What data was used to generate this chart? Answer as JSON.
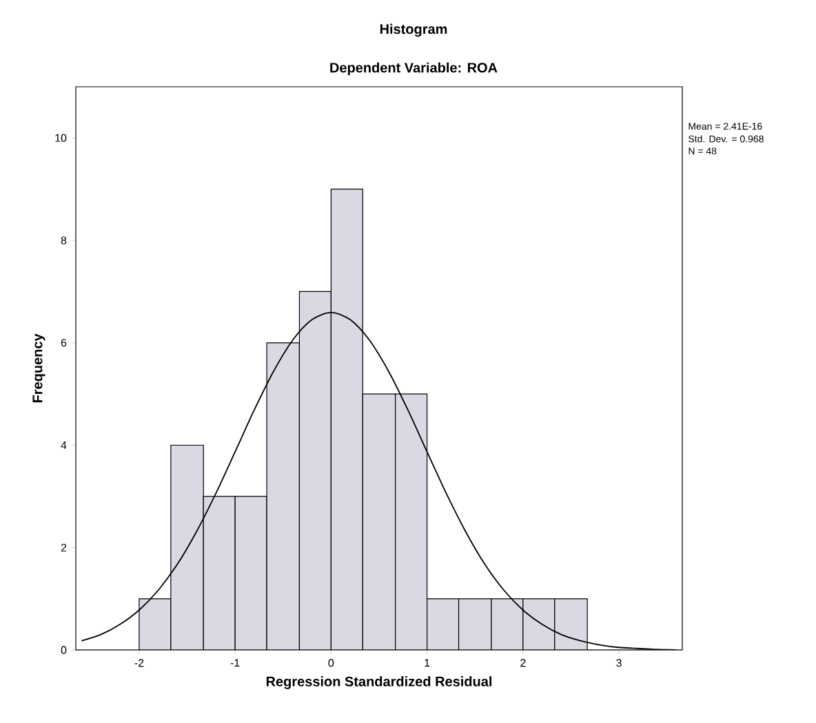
{
  "chart_data": {
    "type": "histogram",
    "title": "Histogram",
    "subtitle": "Dependent Variable: ROA",
    "xlabel": "Regression Standardized Residual",
    "ylabel": "Frequency",
    "bins": [
      -2,
      -1.67,
      -1.33,
      -1,
      -0.67,
      -0.33,
      0,
      0.33,
      0.67,
      1,
      1.33,
      1.67,
      2,
      2.33,
      2.67
    ],
    "series": [
      {
        "color": "#d9d9e3",
        "values": [
          1,
          4,
          3,
          3,
          6,
          7,
          9,
          5,
          5,
          1,
          1,
          1,
          1,
          1
        ]
      },
      {
        "type": "line",
        "color": "#000000",
        "x": [
          -2.6,
          -2.4,
          -2.2,
          -2.0,
          -1.8,
          -1.6,
          -1.4,
          -1.2,
          -1.0,
          -0.8,
          -0.6,
          -0.4,
          -0.2,
          0,
          0.2,
          0.4,
          0.6,
          0.8,
          1.0,
          1.2,
          1.4,
          1.6,
          1.8,
          2.0,
          2.2,
          2.4,
          2.6,
          2.8,
          3.0,
          3.2,
          3.4,
          3.6
        ],
        "values": [
          0.18,
          0.3,
          0.5,
          0.78,
          1.17,
          1.68,
          2.32,
          3.06,
          3.87,
          4.69,
          5.44,
          6.05,
          6.45,
          6.59,
          6.45,
          6.05,
          5.44,
          4.69,
          3.87,
          3.06,
          2.32,
          1.68,
          1.17,
          0.78,
          0.5,
          0.3,
          0.18,
          0.1,
          0.05,
          0.03,
          0.01,
          0.0
        ]
      }
    ],
    "xlim": [
      -2.66,
      3.66
    ],
    "ylim": [
      0,
      11
    ],
    "xticks": [
      -2,
      -1,
      0,
      1,
      2,
      3
    ],
    "yticks": [
      0,
      2,
      4,
      6,
      8,
      10
    ],
    "grid": false,
    "annotations": [
      "Mean = 2.41E-16",
      "Std. Dev. = 0.968",
      "N = 48"
    ]
  }
}
